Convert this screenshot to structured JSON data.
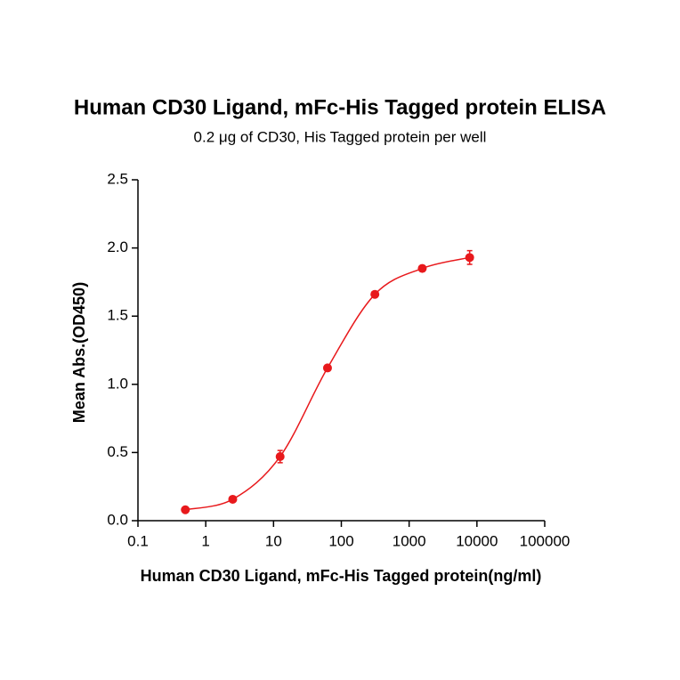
{
  "chart_data": {
    "type": "scatter",
    "title": "Human CD30 Ligand, mFc-His Tagged protein ELISA",
    "subtitle": "0.2 μg of CD30, His Tagged protein per well",
    "x_label": "Human CD30 Ligand, mFc-His Tagged protein(ng/ml)",
    "y_label": "Mean Abs.(OD450)",
    "x_scale": "log",
    "xlim": [
      0.1,
      100000
    ],
    "xticks": [
      0.1,
      1,
      10,
      100,
      1000,
      10000,
      100000
    ],
    "ylim": [
      0,
      2.5
    ],
    "yticks": [
      {
        "value": 0,
        "label": "0.0"
      },
      {
        "value": 0.5,
        "label": "0.5"
      },
      {
        "value": 1,
        "label": "1.0"
      },
      {
        "value": 1.5,
        "label": "1.5"
      },
      {
        "value": 2,
        "label": "2.0"
      },
      {
        "value": 2.5,
        "label": "2.5"
      }
    ],
    "series": [
      {
        "color": "#e8191c",
        "x": [
          0.5,
          2.5,
          12.5,
          62.5,
          312.5,
          1562.5,
          7812.5
        ],
        "values": [
          0.08,
          0.157,
          0.47,
          1.12,
          1.66,
          1.85,
          1.93
        ],
        "errors": [
          0.01,
          0.01,
          0.045,
          0.02,
          0.015,
          0.015,
          0.05
        ]
      }
    ]
  }
}
